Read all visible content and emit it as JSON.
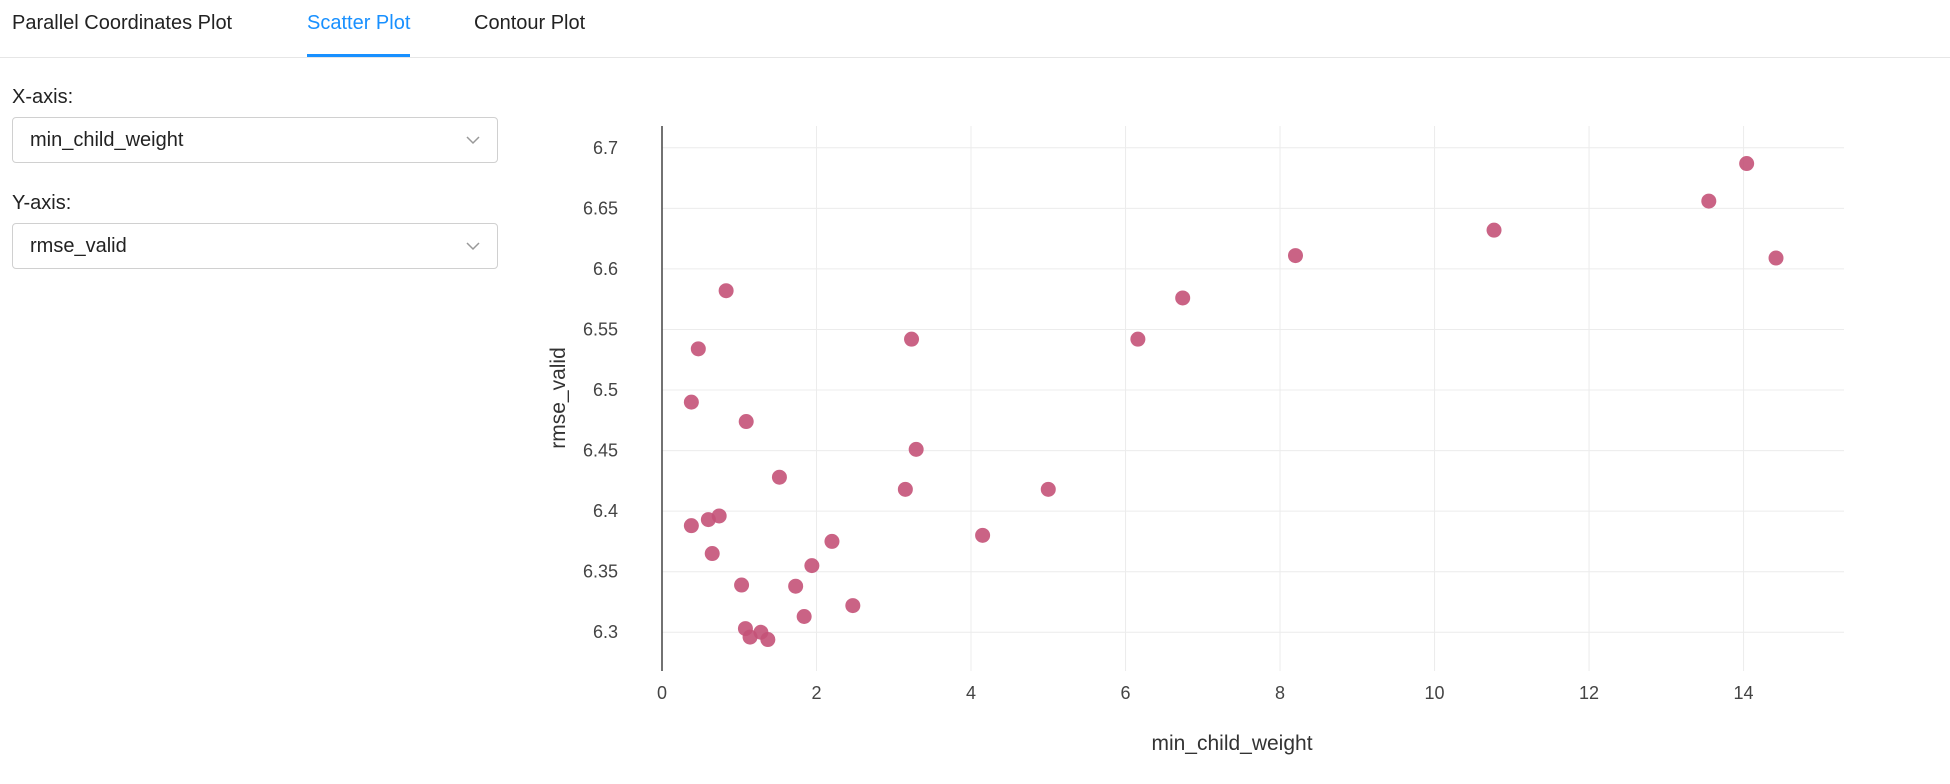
{
  "tabs": [
    {
      "label": "Parallel Coordinates Plot",
      "active": false
    },
    {
      "label": "Scatter Plot",
      "active": true
    },
    {
      "label": "Contour Plot",
      "active": false
    }
  ],
  "controls": {
    "x_axis_label": "X-axis:",
    "x_axis_value": "min_child_weight",
    "y_axis_label": "Y-axis:",
    "y_axis_value": "rmse_valid"
  },
  "colors": {
    "accent": "#1890ff",
    "marker": "#c45278",
    "grid": "#ececec",
    "axis": "#444444"
  },
  "chart_data": {
    "type": "scatter",
    "xlabel": "min_child_weight",
    "ylabel": "rmse_valid",
    "xlim": [
      0,
      15.3
    ],
    "ylim": [
      6.268,
      6.718
    ],
    "xticks": [
      0,
      2,
      4,
      6,
      8,
      10,
      12,
      14
    ],
    "xtick_labels": [
      "0",
      "2",
      "4",
      "6",
      "8",
      "10",
      "12",
      "14"
    ],
    "yticks": [
      6.3,
      6.35,
      6.4,
      6.45,
      6.5,
      6.55,
      6.6,
      6.65,
      6.7
    ],
    "ytick_labels": [
      "6.3",
      "6.35",
      "6.4",
      "6.45",
      "6.5",
      "6.55",
      "6.6",
      "6.65",
      "6.7"
    ],
    "grid": true,
    "points": [
      {
        "x": 0.83,
        "y": 6.582
      },
      {
        "x": 0.47,
        "y": 6.534
      },
      {
        "x": 0.38,
        "y": 6.49
      },
      {
        "x": 1.09,
        "y": 6.474
      },
      {
        "x": 1.52,
        "y": 6.428
      },
      {
        "x": 0.74,
        "y": 6.396
      },
      {
        "x": 0.6,
        "y": 6.393
      },
      {
        "x": 0.38,
        "y": 6.388
      },
      {
        "x": 0.65,
        "y": 6.365
      },
      {
        "x": 1.03,
        "y": 6.339
      },
      {
        "x": 1.73,
        "y": 6.338
      },
      {
        "x": 1.94,
        "y": 6.355
      },
      {
        "x": 2.2,
        "y": 6.375
      },
      {
        "x": 1.84,
        "y": 6.313
      },
      {
        "x": 1.08,
        "y": 6.303
      },
      {
        "x": 1.28,
        "y": 6.3
      },
      {
        "x": 1.14,
        "y": 6.296
      },
      {
        "x": 1.37,
        "y": 6.294
      },
      {
        "x": 2.47,
        "y": 6.322
      },
      {
        "x": 3.23,
        "y": 6.542
      },
      {
        "x": 3.29,
        "y": 6.451
      },
      {
        "x": 3.15,
        "y": 6.418
      },
      {
        "x": 4.15,
        "y": 6.38
      },
      {
        "x": 5.0,
        "y": 6.418
      },
      {
        "x": 6.16,
        "y": 6.542
      },
      {
        "x": 6.74,
        "y": 6.576
      },
      {
        "x": 8.2,
        "y": 6.611
      },
      {
        "x": 10.77,
        "y": 6.632
      },
      {
        "x": 13.55,
        "y": 6.656
      },
      {
        "x": 14.04,
        "y": 6.687
      },
      {
        "x": 14.42,
        "y": 6.609
      }
    ]
  }
}
